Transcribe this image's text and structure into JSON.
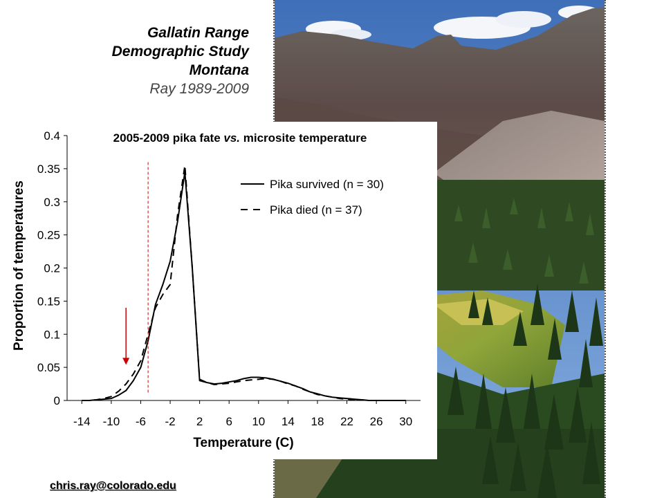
{
  "header": {
    "line1": "Gallatin Range",
    "line2": "Demographic Study",
    "line3": "Montana",
    "line4": "Ray 1989-2009"
  },
  "footer": {
    "email": "chris.ray@colorado.edu"
  },
  "photo": {
    "description_icon": "mountain-meadow-photo"
  },
  "chart_data": {
    "type": "line",
    "title": "2005-2009 pika fate vs. microsite temperature",
    "title_parts": [
      "2005-2009 pika fate ",
      "vs.",
      " microsite temperature"
    ],
    "xlabel": "Temperature (C)",
    "ylabel": "Proportion of temperatures",
    "xlim": [
      -16,
      32
    ],
    "ylim": [
      0,
      0.4
    ],
    "xticks": [
      "-14",
      "-10",
      "-6",
      "-2",
      "2",
      "6",
      "10",
      "14",
      "18",
      "22",
      "26",
      "30"
    ],
    "xtick_values": [
      -14,
      -10,
      -6,
      -2,
      2,
      6,
      10,
      14,
      18,
      22,
      26,
      30
    ],
    "yticks": [
      "0",
      "0.05",
      "0.1",
      "0.15",
      "0.2",
      "0.25",
      "0.3",
      "0.35",
      "0.4"
    ],
    "ytick_values": [
      0,
      0.05,
      0.1,
      0.15,
      0.2,
      0.25,
      0.3,
      0.35,
      0.4
    ],
    "legend_position": "top-right",
    "series": [
      {
        "name": "Pika survived (n = 30)",
        "style": "solid",
        "color": "#000000",
        "x": [
          -14,
          -13,
          -12,
          -11,
          -10,
          -9,
          -8,
          -7,
          -6,
          -5,
          -4,
          -3,
          -2,
          -1,
          0,
          1,
          2,
          3,
          4,
          5,
          6,
          7,
          8,
          9,
          10,
          11,
          12,
          13,
          14,
          15,
          16,
          17,
          18,
          19,
          20,
          21,
          22,
          23,
          24,
          25,
          26,
          27,
          28,
          29,
          30
        ],
        "y": [
          0,
          0,
          0.001,
          0.002,
          0.003,
          0.008,
          0.015,
          0.03,
          0.05,
          0.09,
          0.145,
          0.175,
          0.21,
          0.27,
          0.345,
          0.2,
          0.03,
          0.027,
          0.025,
          0.026,
          0.028,
          0.03,
          0.033,
          0.035,
          0.035,
          0.034,
          0.032,
          0.029,
          0.026,
          0.022,
          0.018,
          0.013,
          0.01,
          0.007,
          0.005,
          0.004,
          0.003,
          0.002,
          0.001,
          0,
          0,
          0,
          0,
          0,
          0
        ]
      },
      {
        "name": "Pika died (n = 37)",
        "style": "dashed",
        "color": "#000000",
        "x": [
          -14,
          -13,
          -12,
          -11,
          -10,
          -9,
          -8,
          -7,
          -6,
          -5,
          -4,
          -3,
          -2,
          -1,
          0,
          1,
          2,
          3,
          4,
          5,
          6,
          7,
          8,
          9,
          10,
          11,
          12,
          13,
          14,
          15,
          16,
          17,
          18,
          19,
          20,
          21,
          22,
          23,
          24,
          25,
          26,
          27,
          28,
          29,
          30
        ],
        "y": [
          0,
          0,
          0.001,
          0.003,
          0.006,
          0.014,
          0.025,
          0.04,
          0.06,
          0.1,
          0.14,
          0.16,
          0.175,
          0.28,
          0.355,
          0.2,
          0.032,
          0.027,
          0.024,
          0.025,
          0.026,
          0.028,
          0.03,
          0.031,
          0.032,
          0.033,
          0.032,
          0.029,
          0.025,
          0.022,
          0.017,
          0.013,
          0.009,
          0.007,
          0.005,
          0.003,
          0.002,
          0.001,
          0.001,
          0,
          0,
          0,
          0,
          0,
          0
        ]
      }
    ],
    "annotations": [
      {
        "type": "vertical-dashed-line",
        "x": -5,
        "y_range": [
          0.012,
          0.36
        ],
        "color": "#cc0000"
      },
      {
        "type": "arrow-down",
        "x": -8,
        "y_from": 0.14,
        "y_to": 0.055,
        "color": "#cc0000"
      }
    ]
  }
}
